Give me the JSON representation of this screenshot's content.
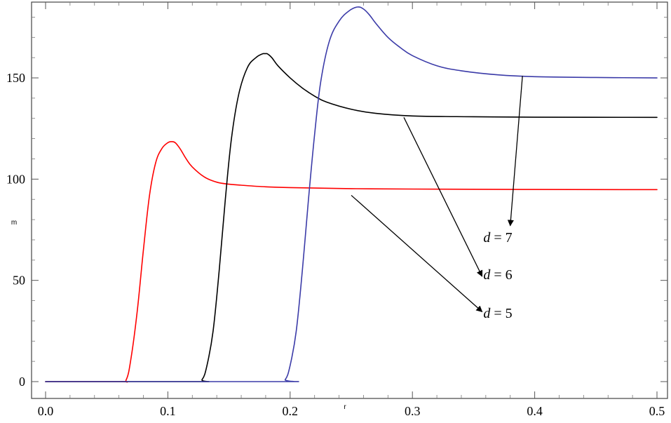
{
  "chart_data": {
    "type": "line",
    "title": "",
    "xlabel": "r",
    "ylabel": "m",
    "xlim": [
      0.0,
      0.5
    ],
    "ylim": [
      0,
      185
    ],
    "xticks": [
      "0.0",
      "0.1",
      "0.2",
      "0.3",
      "0.4",
      "0.5"
    ],
    "yticks": [
      "0",
      "50",
      "100",
      "150"
    ],
    "grid": false,
    "series": [
      {
        "color": "#ff0000",
        "x": [
          0.0,
          0.06,
          0.066,
          0.07,
          0.075,
          0.08,
          0.085,
          0.09,
          0.095,
          0.1,
          0.103,
          0.106,
          0.11,
          0.115,
          0.12,
          0.13,
          0.14,
          0.15,
          0.16,
          0.18,
          0.2,
          0.25,
          0.3,
          0.4,
          0.5
        ],
        "y": [
          0,
          0,
          1,
          12,
          35,
          65,
          92,
          108,
          115,
          118,
          118.5,
          118,
          115,
          110,
          106,
          101,
          98.5,
          97.5,
          97,
          96.2,
          95.8,
          95.3,
          95.1,
          94.9,
          94.8
        ]
      },
      {
        "color": "#000000",
        "x": [
          0.0,
          0.122,
          0.128,
          0.132,
          0.137,
          0.142,
          0.147,
          0.152,
          0.158,
          0.165,
          0.172,
          0.178,
          0.181,
          0.185,
          0.19,
          0.2,
          0.21,
          0.22,
          0.23,
          0.25,
          0.27,
          0.3,
          0.35,
          0.4,
          0.5
        ],
        "y": [
          0,
          0,
          1,
          8,
          25,
          55,
          90,
          120,
          142,
          155,
          160,
          162,
          162,
          160,
          156,
          150,
          145,
          141,
          138,
          134.5,
          132.5,
          131.2,
          130.8,
          130.6,
          130.5
        ]
      },
      {
        "color": "#3b3ba8",
        "x": [
          0.0,
          0.19,
          0.196,
          0.2,
          0.205,
          0.21,
          0.215,
          0.22,
          0.225,
          0.232,
          0.24,
          0.248,
          0.255,
          0.26,
          0.265,
          0.27,
          0.28,
          0.29,
          0.3,
          0.32,
          0.34,
          0.37,
          0.4,
          0.45,
          0.5
        ],
        "y": [
          0,
          0,
          1,
          8,
          25,
          55,
          90,
          122,
          148,
          168,
          178,
          183,
          185,
          184,
          181,
          177,
          170,
          165,
          161,
          156,
          153.5,
          151.5,
          150.6,
          150.2,
          150
        ]
      }
    ],
    "annotations": [
      {
        "var": "d",
        "eq": " = 7",
        "text": "d = 7",
        "x": 0.358,
        "y": 69,
        "from": [
          0.39,
          151
        ],
        "to": [
          0.38,
          77
        ]
      },
      {
        "var": "d",
        "eq": " = 6",
        "text": "d = 6",
        "x": 0.358,
        "y": 50.5,
        "from": [
          0.293,
          130.5
        ],
        "to": [
          0.357,
          52
        ]
      },
      {
        "var": "d",
        "eq": " = 5",
        "text": "d = 5",
        "x": 0.358,
        "y": 31.5,
        "from": [
          0.25,
          92
        ],
        "to": [
          0.357,
          34.5
        ]
      }
    ]
  }
}
